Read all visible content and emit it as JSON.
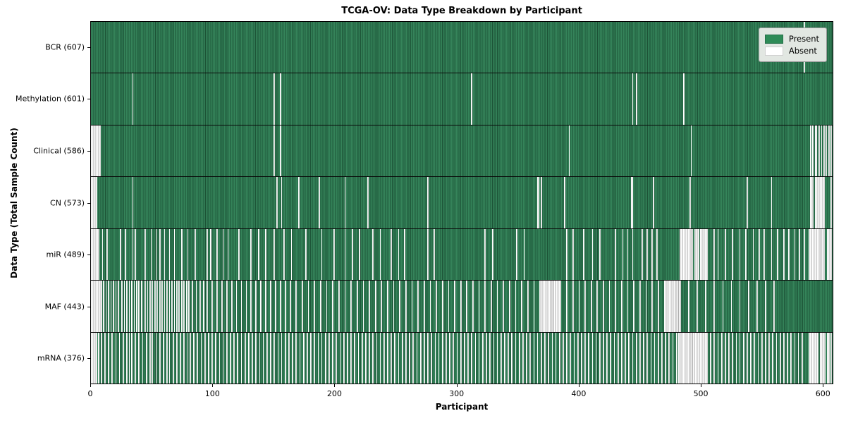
{
  "title": "TCGA-OV: Data Type Breakdown by Participant",
  "x_axis": {
    "label": "Participant",
    "ticks": [
      0,
      100,
      200,
      300,
      400,
      500,
      600
    ]
  },
  "y_axis": {
    "label": "Data Type (Total Sample Count)"
  },
  "legend": {
    "present_label": "Present",
    "absent_label": "Absent",
    "present_color": "#2e8b57",
    "absent_color": "#ffffff"
  },
  "chart_data": {
    "type": "heatmap",
    "title": "TCGA-OV: Data Type Breakdown by Participant",
    "xlabel": "Participant",
    "ylabel": "Data Type (Total Sample Count)",
    "xlim": [
      0,
      608
    ],
    "n_participants": 608,
    "cell_states": [
      "Present",
      "Absent"
    ],
    "rows": [
      {
        "label": "BCR (607)",
        "data_type": "BCR",
        "present_count": 607,
        "absent_indices": [
          585
        ]
      },
      {
        "label": "Methylation (601)",
        "data_type": "Methylation",
        "present_count": 601,
        "absent_indices": [
          34,
          150,
          155,
          312,
          444,
          447,
          486
        ]
      },
      {
        "label": "Clinical (586)",
        "data_type": "Clinical",
        "present_count": 586,
        "absent_indices": [
          0,
          1,
          2,
          3,
          4,
          5,
          6,
          7,
          150,
          155,
          392,
          492,
          590,
          592,
          594,
          595,
          597,
          599,
          601,
          603,
          605,
          607
        ]
      },
      {
        "label": "CN (573)",
        "data_type": "CN",
        "present_count": 573,
        "absent_indices": [
          0,
          1,
          2,
          3,
          4,
          34,
          152,
          156,
          170,
          187,
          208,
          227,
          276,
          366,
          367,
          369,
          388,
          443,
          444,
          461,
          491,
          538,
          558,
          590,
          591,
          592,
          594,
          595,
          596,
          597,
          598,
          599,
          600,
          601,
          607
        ]
      },
      {
        "label": "miR (489)",
        "data_type": "miR",
        "present_count": 489,
        "absent_indices": [
          0,
          1,
          2,
          3,
          4,
          5,
          6,
          9,
          13,
          24,
          28,
          34,
          36,
          44,
          49,
          53,
          56,
          60,
          64,
          68,
          74,
          79,
          85,
          95,
          98,
          103,
          108,
          112,
          121,
          131,
          137,
          143,
          150,
          158,
          164,
          176,
          189,
          199,
          208,
          214,
          220,
          231,
          237,
          246,
          252,
          257,
          276,
          281,
          323,
          329,
          349,
          355,
          390,
          395,
          404,
          411,
          417,
          430,
          436,
          440,
          444,
          452,
          456,
          460,
          464,
          483,
          484,
          485,
          486,
          487,
          488,
          489,
          490,
          491,
          492,
          493,
          495,
          496,
          497,
          498,
          500,
          501,
          502,
          503,
          504,
          505,
          511,
          514,
          520,
          526,
          532,
          537,
          543,
          548,
          552,
          558,
          563,
          568,
          572,
          577,
          581,
          585,
          589,
          590,
          591,
          592,
          593,
          594,
          595,
          596,
          597,
          598,
          599,
          600,
          601,
          604,
          605,
          606,
          607
        ]
      },
      {
        "label": "MAF (443)",
        "data_type": "MAF",
        "present_count": 443,
        "absent_indices": [
          0,
          1,
          2,
          3,
          4,
          5,
          6,
          7,
          8,
          10,
          12,
          14,
          16,
          18,
          20,
          22,
          25,
          27,
          29,
          31,
          33,
          35,
          37,
          39,
          41,
          44,
          46,
          48,
          50,
          52,
          54,
          56,
          58,
          60,
          62,
          64,
          66,
          68,
          70,
          72,
          74,
          76,
          78,
          80,
          83,
          86,
          89,
          92,
          95,
          99,
          103,
          107,
          111,
          115,
          119,
          123,
          127,
          131,
          135,
          139,
          143,
          147,
          151,
          155,
          159,
          163,
          168,
          173,
          178,
          183,
          188,
          193,
          198,
          203,
          208,
          213,
          218,
          223,
          228,
          233,
          238,
          243,
          248,
          253,
          258,
          263,
          268,
          273,
          278,
          283,
          288,
          293,
          298,
          303,
          308,
          313,
          318,
          323,
          328,
          333,
          338,
          343,
          348,
          353,
          358,
          363,
          368,
          369,
          370,
          371,
          372,
          373,
          374,
          375,
          376,
          377,
          378,
          379,
          380,
          381,
          382,
          383,
          384,
          385,
          390,
          395,
          400,
          405,
          410,
          415,
          420,
          425,
          430,
          435,
          440,
          445,
          450,
          455,
          460,
          465,
          470,
          471,
          472,
          473,
          474,
          475,
          476,
          477,
          478,
          479,
          480,
          481,
          482,
          483,
          490,
          497,
          504,
          511,
          518,
          525,
          532,
          539,
          546,
          553,
          560
        ]
      },
      {
        "label": "mRNA (376)",
        "data_type": "mRNA",
        "present_count": 376,
        "absent_indices": [
          0,
          1,
          2,
          3,
          4,
          6,
          8,
          11,
          14,
          17,
          20,
          23,
          26,
          29,
          31,
          33,
          36,
          39,
          42,
          45,
          48,
          50,
          53,
          56,
          59,
          62,
          64,
          67,
          70,
          73,
          76,
          79,
          81,
          84,
          87,
          90,
          93,
          96,
          99,
          102,
          105,
          108,
          111,
          114,
          117,
          120,
          123,
          126,
          129,
          132,
          135,
          138,
          141,
          144,
          147,
          150,
          153,
          156,
          159,
          162,
          165,
          168,
          171,
          174,
          177,
          180,
          183,
          186,
          189,
          192,
          195,
          198,
          201,
          204,
          207,
          210,
          213,
          216,
          219,
          222,
          225,
          228,
          231,
          234,
          237,
          240,
          243,
          246,
          249,
          252,
          255,
          258,
          261,
          264,
          267,
          270,
          273,
          276,
          279,
          282,
          285,
          288,
          291,
          294,
          297,
          300,
          303,
          306,
          309,
          312,
          315,
          318,
          321,
          324,
          327,
          330,
          333,
          336,
          339,
          342,
          345,
          348,
          351,
          354,
          357,
          360,
          363,
          366,
          369,
          372,
          375,
          378,
          381,
          384,
          387,
          390,
          393,
          396,
          399,
          402,
          405,
          408,
          411,
          414,
          417,
          420,
          423,
          426,
          429,
          432,
          435,
          438,
          441,
          444,
          447,
          450,
          453,
          456,
          459,
          462,
          465,
          468,
          471,
          474,
          477,
          480,
          482,
          483,
          484,
          485,
          486,
          487,
          488,
          489,
          490,
          491,
          492,
          493,
          494,
          495,
          496,
          497,
          498,
          499,
          500,
          501,
          502,
          503,
          504,
          505,
          508,
          511,
          514,
          517,
          520,
          523,
          526,
          529,
          532,
          535,
          538,
          541,
          544,
          547,
          550,
          553,
          556,
          559,
          562,
          565,
          568,
          571,
          574,
          577,
          580,
          583,
          589,
          590,
          591,
          592,
          593,
          594,
          595,
          596,
          598,
          599,
          600,
          601,
          602,
          604,
          605,
          607
        ]
      }
    ]
  }
}
